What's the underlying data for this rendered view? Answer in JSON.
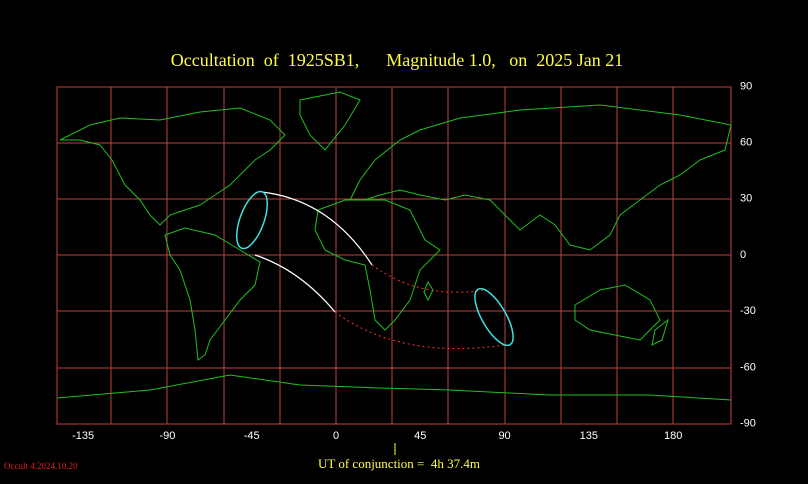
{
  "title": "Occultation  of  1925SB1,      Magnitude 1.0,   on  2025 Jan 21",
  "map": {
    "lon_ticks": [
      -135,
      -90,
      -45,
      0,
      45,
      90,
      135,
      180
    ],
    "lat_ticks": [
      90,
      60,
      30,
      0,
      -30,
      -60,
      -90
    ]
  },
  "footer": {
    "conjunction": "UT of conjunction =  4h 37.4m",
    "version": "Occult 4.2024.10.20"
  }
}
